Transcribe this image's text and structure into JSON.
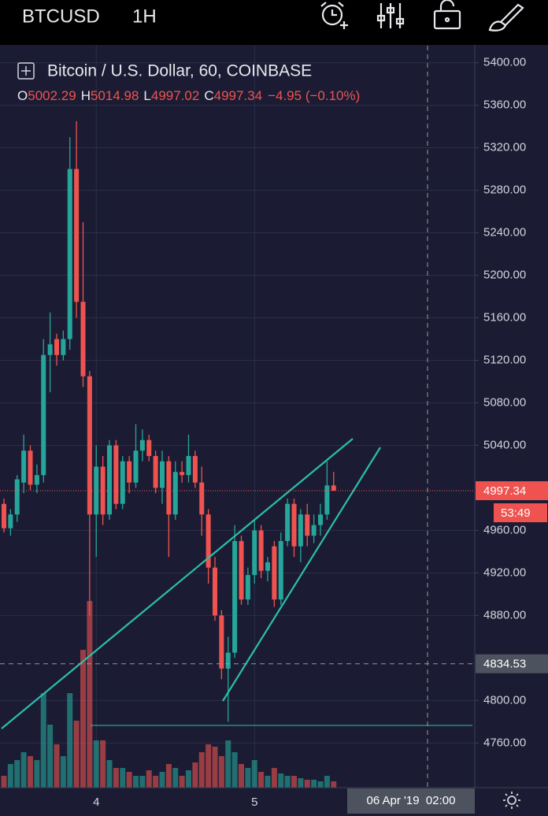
{
  "header": {
    "symbol": "BTCUSD",
    "interval": "1H"
  },
  "chart_data": {
    "type": "candlestick",
    "title": "Bitcoin / U.S. Dollar, 60, COINBASE",
    "ohlc_legend": [
      {
        "label": "O",
        "value": "5002.29"
      },
      {
        "label": "H",
        "value": "5014.98"
      },
      {
        "label": "L",
        "value": "4997.02"
      },
      {
        "label": "C",
        "value": "4997.34"
      }
    ],
    "change": "−4.95 (−0.10%)",
    "categories": [
      null,
      null,
      null,
      null,
      null,
      null,
      null,
      null,
      null,
      null,
      null,
      null,
      null,
      null,
      "4",
      null,
      null,
      null,
      null,
      null,
      null,
      null,
      null,
      null,
      null,
      null,
      null,
      null,
      null,
      null,
      null,
      null,
      null,
      null,
      null,
      null,
      null,
      null,
      "5",
      null,
      null,
      null,
      null,
      null,
      null,
      null,
      null,
      null,
      null,
      null,
      null
    ],
    "open": [
      4985,
      4962,
      4975,
      5005,
      5035,
      5003,
      5012,
      5125,
      5140,
      5125,
      5140,
      5300,
      5175,
      5105,
      4975,
      5020,
      4975,
      5040,
      4985,
      5025,
      5005,
      5035,
      5045,
      5030,
      5000,
      5025,
      4975,
      5015,
      5012,
      5030,
      5005,
      4975,
      4925,
      4880,
      4830,
      4845,
      4950,
      4895,
      4918,
      4960,
      4922,
      4945,
      4895,
      4950,
      4985,
      4945,
      4975,
      4955,
      4965,
      4975,
      5002.29
    ],
    "high": [
      4990,
      4980,
      5012,
      5050,
      5040,
      5022,
      5140,
      5165,
      5145,
      5148,
      5330,
      5345,
      5250,
      5110,
      5040,
      5030,
      5045,
      5045,
      5030,
      5030,
      5060,
      5055,
      5050,
      5035,
      5035,
      5030,
      5025,
      5025,
      5050,
      5035,
      5020,
      4980,
      4935,
      4885,
      4860,
      4965,
      4955,
      4925,
      4970,
      4965,
      4935,
      4950,
      4958,
      4990,
      4990,
      4980,
      4985,
      4975,
      4985,
      5025,
      5014.98
    ],
    "low": [
      4958,
      4955,
      4968,
      4995,
      4998,
      4995,
      5005,
      5090,
      5115,
      5120,
      5130,
      5160,
      5095,
      4880,
      4935,
      4965,
      4970,
      4980,
      4980,
      4995,
      5000,
      5025,
      5025,
      4995,
      4985,
      4935,
      4970,
      5005,
      5005,
      5000,
      4955,
      4910,
      4875,
      4820,
      4780,
      4840,
      4890,
      4890,
      4910,
      4915,
      4912,
      4888,
      4890,
      4945,
      4935,
      4930,
      4945,
      4948,
      4955,
      4970,
      4997.02
    ],
    "close": [
      4962,
      4975,
      5008,
      5035,
      5003,
      5012,
      5125,
      5135,
      5125,
      5140,
      5300,
      5175,
      5105,
      4975,
      5020,
      4975,
      5040,
      4985,
      5025,
      5005,
      5035,
      5045,
      5030,
      5000,
      5025,
      4975,
      5015,
      5012,
      5030,
      5005,
      4975,
      4925,
      4880,
      4830,
      4845,
      4950,
      4895,
      4918,
      4960,
      4922,
      4930,
      4895,
      4950,
      4985,
      4945,
      4975,
      4955,
      4965,
      4975,
      5002.29,
      4997.34
    ],
    "volume": [
      15,
      30,
      35,
      45,
      40,
      35,
      120,
      80,
      55,
      40,
      120,
      85,
      175,
      237,
      60,
      60,
      35,
      25,
      25,
      20,
      15,
      15,
      22,
      15,
      20,
      30,
      25,
      15,
      22,
      32,
      45,
      55,
      52,
      40,
      60,
      45,
      30,
      25,
      35,
      20,
      15,
      25,
      18,
      15,
      15,
      12,
      10,
      10,
      8,
      15,
      8
    ],
    "up_color": "#26a69a",
    "down_color": "#ef5350",
    "ylim": [
      4718,
      5416
    ],
    "yticks": [
      {
        "value": 5400,
        "label": "5400.00"
      },
      {
        "value": 5360,
        "label": "5360.00"
      },
      {
        "value": 5320,
        "label": "5320.00"
      },
      {
        "value": 5280,
        "label": "5280.00"
      },
      {
        "value": 5240,
        "label": "5240.00"
      },
      {
        "value": 5200,
        "label": "5200.00"
      },
      {
        "value": 5160,
        "label": "5160.00"
      },
      {
        "value": 5120,
        "label": "5120.00"
      },
      {
        "value": 5080,
        "label": "5080.00"
      },
      {
        "value": 5040,
        "label": "5040.00"
      },
      {
        "value": 4960,
        "label": "4960.00"
      },
      {
        "value": 4920,
        "label": "4920.00"
      },
      {
        "value": 4880,
        "label": "4880.00"
      },
      {
        "value": 4800,
        "label": "4800.00"
      },
      {
        "value": 4760,
        "label": "4760.00"
      }
    ],
    "grid": true,
    "last_price": {
      "value": 4997.34,
      "label": "4997.34"
    },
    "countdown": "53:49",
    "crosshair": {
      "price": {
        "value": 4834.53,
        "label": "4834.53"
      },
      "time": "06 Apr '19  02:00"
    }
  }
}
